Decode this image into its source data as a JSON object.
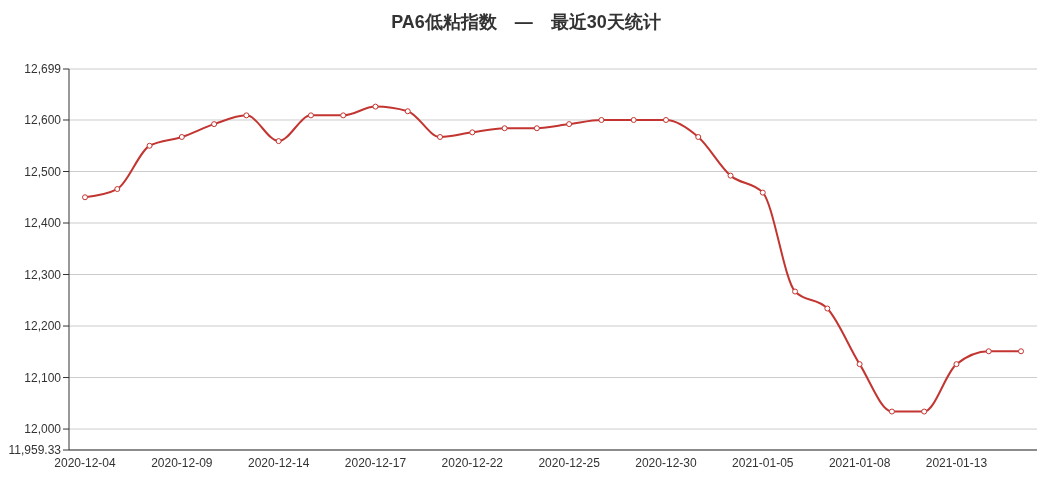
{
  "chart_data": {
    "type": "line",
    "title": "PA6低粘指数　—　最近30天统计",
    "categories": [
      "2020-12-04",
      null,
      null,
      "2020-12-09",
      null,
      null,
      "2020-12-14",
      null,
      null,
      "2020-12-17",
      null,
      null,
      "2020-12-22",
      null,
      null,
      "2020-12-25",
      null,
      null,
      "2020-12-30",
      null,
      null,
      "2021-01-05",
      null,
      null,
      "2021-01-08",
      null,
      null,
      "2021-01-13",
      null,
      null
    ],
    "series": [
      {
        "color": "#c23531",
        "values": [
          12450,
          12466,
          12550,
          12567,
          12592,
          12609,
          12559,
          12609,
          12609,
          12626,
          12617,
          12567,
          12576,
          12584,
          12584,
          12592,
          12600,
          12600,
          12600,
          12567,
          12492,
          12459,
          12267,
          12234,
          12126,
          12034,
          12034,
          12126,
          12151,
          12151
        ]
      }
    ],
    "ylim": [
      11959.33,
      12699
    ],
    "yticks": [
      {
        "value": 11959.33,
        "label": "11,959.33"
      },
      {
        "value": 12000,
        "label": "12,000"
      },
      {
        "value": 12100,
        "label": "12,100"
      },
      {
        "value": 12200,
        "label": "12,200"
      },
      {
        "value": 12300,
        "label": "12,300"
      },
      {
        "value": 12400,
        "label": "12,400"
      },
      {
        "value": 12500,
        "label": "12,500"
      },
      {
        "value": 12600,
        "label": "12,600"
      },
      {
        "value": 12699,
        "label": "12,699"
      }
    ],
    "grid": "y",
    "marker": "circle",
    "line_style": "solid",
    "legend": false
  }
}
